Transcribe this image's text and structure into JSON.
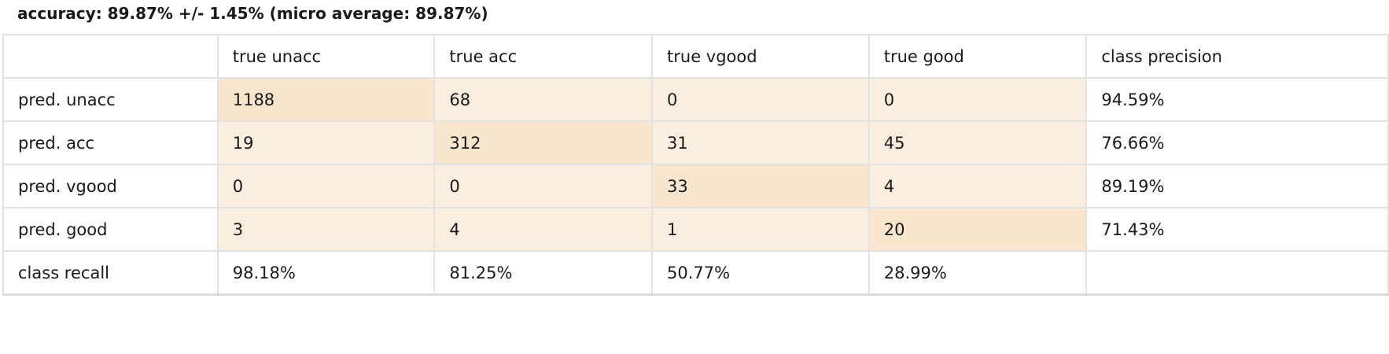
{
  "title": "accuracy: 89.87% +/- 1.45% (micro average: 89.87%)",
  "matrix": {
    "corner": "",
    "columns": [
      "true unacc",
      "true acc",
      "true vgood",
      "true good",
      "class precision"
    ],
    "rows": [
      {
        "label": "pred. unacc",
        "cells": [
          "1188",
          "68",
          "0",
          "0"
        ],
        "precision": "94.59%"
      },
      {
        "label": "pred. acc",
        "cells": [
          "19",
          "312",
          "31",
          "45"
        ],
        "precision": "76.66%"
      },
      {
        "label": "pred. vgood",
        "cells": [
          "0",
          "0",
          "33",
          "4"
        ],
        "precision": "89.19%"
      },
      {
        "label": "pred. good",
        "cells": [
          "3",
          "4",
          "1",
          "20"
        ],
        "precision": "71.43%"
      }
    ],
    "recall": {
      "label": "class recall",
      "values": [
        "98.18%",
        "81.25%",
        "50.77%",
        "28.99%"
      ],
      "last": ""
    }
  },
  "colors": {
    "diagonal_cell": "#fae6cf",
    "off_diagonal_cell": "#faeee0",
    "grid_line": "#e2e2e2"
  }
}
